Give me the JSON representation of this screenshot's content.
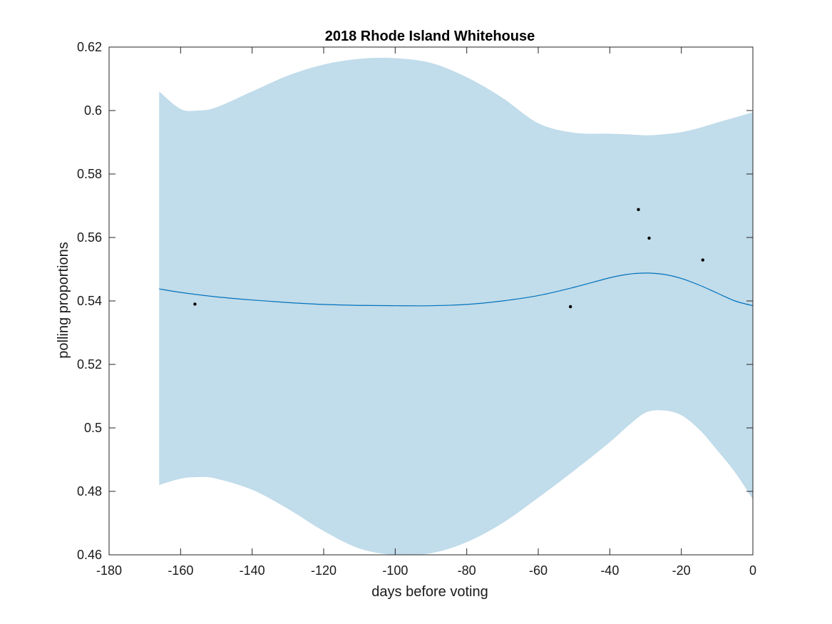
{
  "chart_data": {
    "type": "line",
    "title": "2018 Rhode Island Whitehouse",
    "xlabel": "days before voting",
    "ylabel": "polling proportions",
    "xlim": [
      -180,
      0
    ],
    "ylim": [
      0.46,
      0.62
    ],
    "xticks": [
      "-180",
      "-160",
      "-140",
      "-120",
      "-100",
      "-80",
      "-60",
      "-40",
      "-20",
      "0"
    ],
    "yticks": [
      "0.46",
      "0.48",
      "0.5",
      "0.52",
      "0.54",
      "0.56",
      "0.58",
      "0.6",
      "0.62"
    ],
    "grid": false,
    "colors": {
      "band": "#c1dcea",
      "line": "#0072bd",
      "points": "#000000",
      "axes": "#262626"
    },
    "trend": {
      "x": [
        -166,
        -160,
        -150,
        -140,
        -130,
        -120,
        -110,
        -100,
        -90,
        -80,
        -70,
        -60,
        -50,
        -40,
        -35,
        -30,
        -25,
        -20,
        -15,
        -10,
        -5,
        0
      ],
      "y": [
        0.5438,
        0.5427,
        0.5413,
        0.5403,
        0.5395,
        0.5389,
        0.5386,
        0.5385,
        0.5385,
        0.5389,
        0.54,
        0.5417,
        0.5443,
        0.5473,
        0.5484,
        0.5488,
        0.5484,
        0.5471,
        0.545,
        0.5425,
        0.54,
        0.5385
      ]
    },
    "band": {
      "x": [
        -166,
        -160,
        -155,
        -150,
        -140,
        -130,
        -120,
        -110,
        -100,
        -90,
        -80,
        -70,
        -60,
        -50,
        -40,
        -35,
        -30,
        -25,
        -20,
        -15,
        -10,
        -5,
        0
      ],
      "upper": [
        0.606,
        0.6005,
        0.6,
        0.601,
        0.606,
        0.611,
        0.6145,
        0.6163,
        0.6165,
        0.615,
        0.6105,
        0.604,
        0.596,
        0.593,
        0.5927,
        0.5925,
        0.5922,
        0.5925,
        0.5932,
        0.5945,
        0.5962,
        0.5978,
        0.5995
      ],
      "lower": [
        0.482,
        0.484,
        0.4845,
        0.484,
        0.4805,
        0.4745,
        0.4675,
        0.462,
        0.46,
        0.4605,
        0.464,
        0.47,
        0.478,
        0.4865,
        0.4955,
        0.5005,
        0.5048,
        0.5055,
        0.504,
        0.4995,
        0.493,
        0.486,
        0.4775
      ]
    },
    "points": {
      "x": [
        -156,
        -51,
        -32,
        -29,
        -14
      ],
      "y": [
        0.539,
        0.5382,
        0.5688,
        0.5598,
        0.5529
      ]
    }
  }
}
